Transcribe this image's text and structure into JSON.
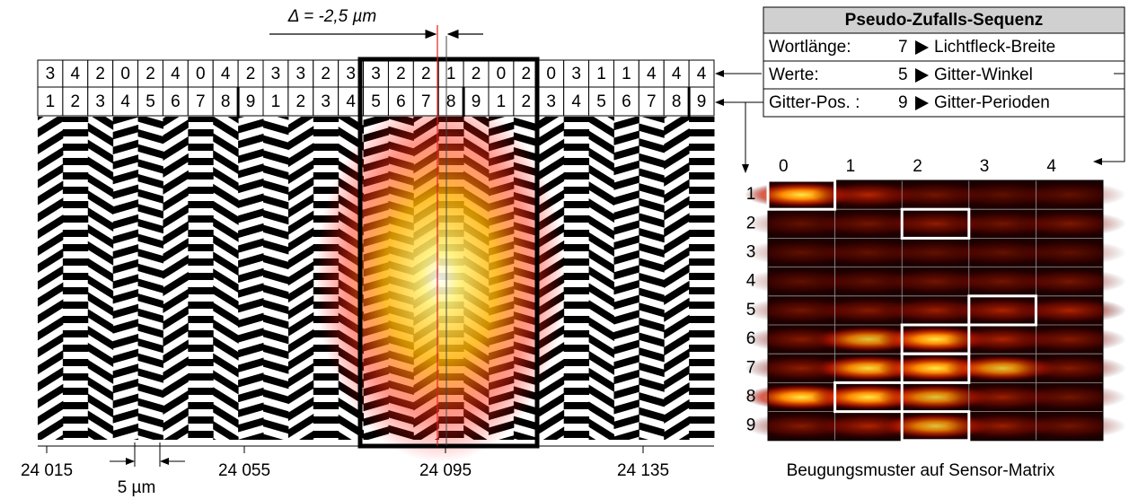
{
  "shift_label": "Δ = -2,5 µm",
  "sequence": {
    "values": [
      "3",
      "4",
      "2",
      "0",
      "2",
      "4",
      "0",
      "4",
      "2",
      "3",
      "3",
      "2",
      "3",
      "3",
      "2",
      "2",
      "1",
      "2",
      "0",
      "2",
      "0",
      "3",
      "1",
      "1",
      "4",
      "4",
      "4"
    ],
    "positions": [
      "1",
      "2",
      "3",
      "4",
      "5",
      "6",
      "7",
      "8",
      "9",
      "1",
      "2",
      "3",
      "4",
      "5",
      "6",
      "7",
      "8",
      "9",
      "1",
      "2",
      "3",
      "4",
      "5",
      "6",
      "7",
      "8",
      "9"
    ]
  },
  "axis": {
    "labels": [
      "24 015",
      "24 055",
      "24 095",
      "24 135"
    ],
    "scale_label": "5 µm"
  },
  "table": {
    "title": "Pseudo-Zufalls-Sequenz",
    "rows": [
      {
        "label": "Wortlänge:",
        "value": "7",
        "meaning": "Lichtfleck-Breite"
      },
      {
        "label": "Werte:",
        "value": "5",
        "meaning": "Gitter-Winkel"
      },
      {
        "label": "Gitter-Pos. :",
        "value": "9",
        "meaning": "Gitter-Perioden"
      }
    ]
  },
  "matrix": {
    "columns": [
      "0",
      "1",
      "2",
      "3",
      "4"
    ],
    "rows": [
      "1",
      "2",
      "3",
      "4",
      "5",
      "6",
      "7",
      "8",
      "9"
    ],
    "caption": "Beugungsmuster auf Sensor-Matrix"
  }
}
